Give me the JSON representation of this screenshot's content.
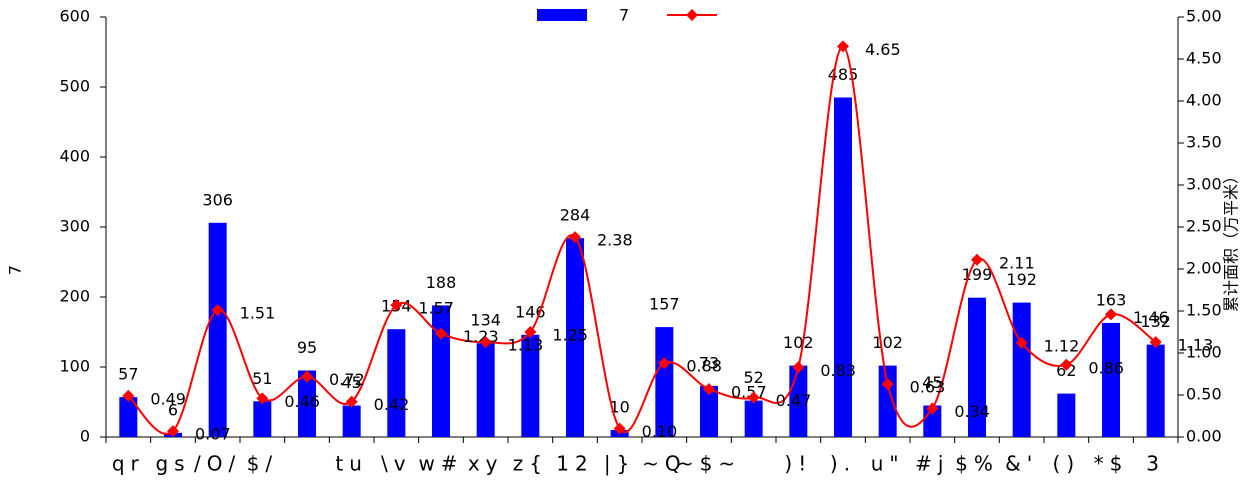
{
  "chart_data": {
    "type": "bar-line",
    "categories": [
      "qr",
      "gs",
      "/O/",
      "$/",
      null,
      "tu",
      "\\v",
      "w#",
      "xy",
      "z{",
      "12",
      "|}",
      "~Q",
      "~$~",
      null,
      ")!",
      ").",
      "u\"",
      "#j",
      "$%",
      "&'",
      "()",
      "*$",
      "3"
    ],
    "y_label": "7",
    "y2_label": "累计面积（万平米）",
    "series": [
      {
        "name": "7",
        "type": "bar",
        "color": "#0000ff",
        "values": [
          57,
          6,
          306,
          51,
          95,
          45,
          154,
          188,
          134,
          146,
          284,
          10,
          157,
          73,
          52,
          102,
          485,
          102,
          45,
          199,
          192,
          62,
          163,
          132
        ]
      },
      {
        "type": "line",
        "axis": "y2",
        "color": "#ff0000",
        "values": [
          0.49,
          0.07,
          1.51,
          0.46,
          0.72,
          0.42,
          1.57,
          1.23,
          1.13,
          1.25,
          2.38,
          0.1,
          0.88,
          0.57,
          0.47,
          0.83,
          4.65,
          0.63,
          0.34,
          2.11,
          1.12,
          0.86,
          1.46,
          1.13
        ],
        "value_labels": [
          "0.49",
          "0.07",
          "1.51",
          "0.46",
          "0.72",
          "0.42",
          "1.57",
          "1.23",
          "1.13",
          "1.25",
          "2.38",
          "0.10",
          "0.88",
          "0.57",
          "0.47",
          "0.83",
          "4.65",
          "0.63",
          "0.34",
          "2.11",
          "1.12",
          "0.86",
          "1.46",
          "1.13"
        ]
      }
    ],
    "ylim": [
      0,
      600
    ],
    "yticks": [
      0,
      100,
      200,
      300,
      400,
      500,
      600
    ],
    "y2lim": [
      0,
      5
    ],
    "y2ticks": [
      {
        "value": 0,
        "label": "0.00"
      },
      {
        "value": 0.5,
        "label": "0.50"
      },
      {
        "value": 1,
        "label": "1.00"
      },
      {
        "value": 1.5,
        "label": "1.50"
      },
      {
        "value": 2,
        "label": "2.00"
      },
      {
        "value": 2.5,
        "label": "2.50"
      },
      {
        "value": 3,
        "label": "3.00"
      },
      {
        "value": 3.5,
        "label": "3.50"
      },
      {
        "value": 4,
        "label": "4.00"
      },
      {
        "value": 4.5,
        "label": "4.50"
      },
      {
        "value": 5,
        "label": "5.00"
      }
    ],
    "legend": "top",
    "grid": false
  }
}
